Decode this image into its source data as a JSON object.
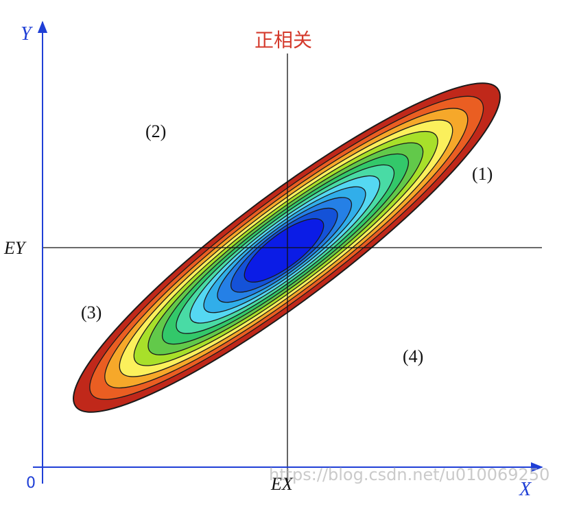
{
  "title": "正相关",
  "axes": {
    "y_label": "Y",
    "x_label": "X",
    "origin_label": "0",
    "mean_x_label": "EX",
    "mean_y_label": "EY"
  },
  "regions": [
    {
      "id": "1",
      "label": "(1)"
    },
    {
      "id": "2",
      "label": "(2)"
    },
    {
      "id": "3",
      "label": "(3)"
    },
    {
      "id": "4",
      "label": "(4)"
    }
  ],
  "watermark": "https://blog.csdn.net/u010069250",
  "contour_colors": [
    "#c0281a",
    "#ea5e22",
    "#f6a82a",
    "#fbf05c",
    "#a8e02a",
    "#62c94a",
    "#33c86a",
    "#49dba5",
    "#55d8f2",
    "#31aeea",
    "#2580e6",
    "#1452d8",
    "#0b1ce6"
  ],
  "colors": {
    "axis": "#1f3fd6",
    "title": "#d43a2c",
    "line": "#111111"
  }
}
